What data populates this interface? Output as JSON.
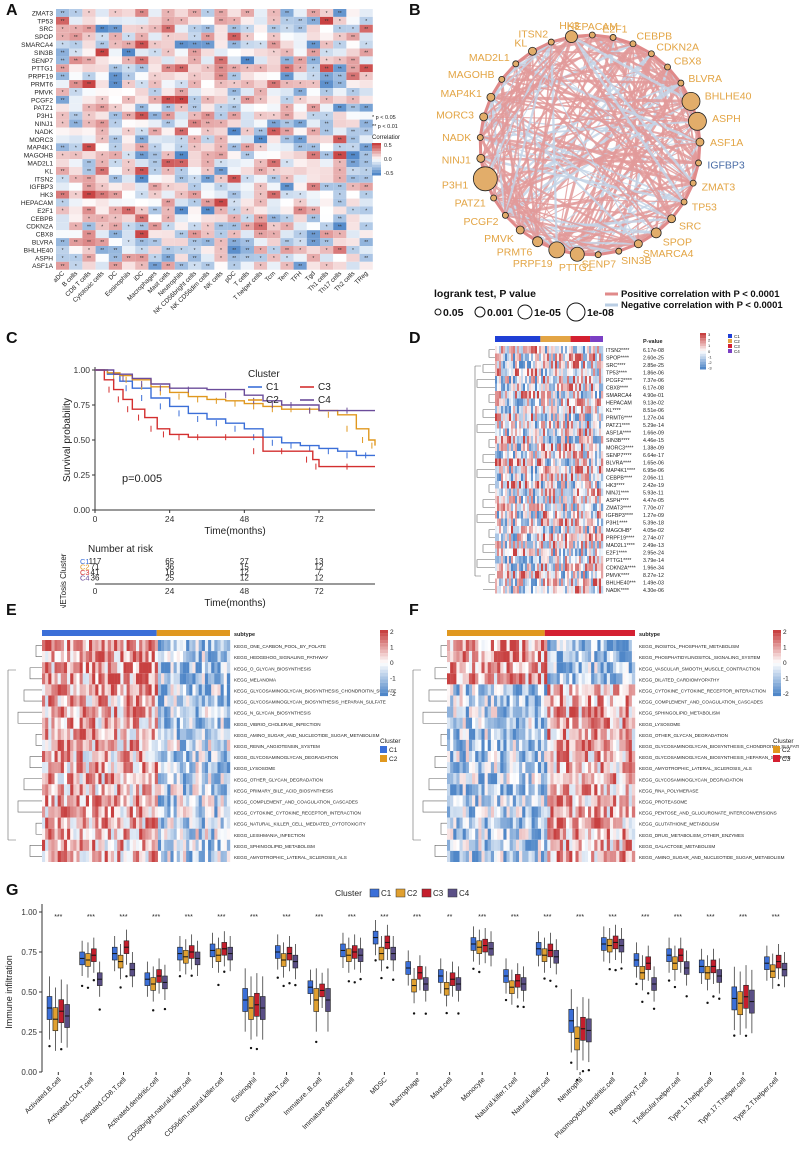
{
  "panels": {
    "A": "A",
    "B": "B",
    "C": "C",
    "D": "D",
    "E": "E",
    "F": "F",
    "G": "G"
  },
  "panelA": {
    "genes": [
      "ZMAT3",
      "TP53",
      "SRC",
      "SPOP",
      "SMARCA4",
      "SIN3B",
      "SENP7",
      "PTTG1",
      "PRPF19",
      "PRMT6",
      "PMVK",
      "PCGF2",
      "PATZ1",
      "P3H1",
      "NINJ1",
      "NADK",
      "MORC3",
      "MAP4K1",
      "MAGOHB",
      "MAD2L1",
      "KL",
      "ITSN2",
      "IGFBP3",
      "HK3",
      "HEPACAM",
      "E2F1",
      "CEBPB",
      "CDKN2A",
      "CBX8",
      "BLVRA",
      "BHLHE40",
      "ASPH",
      "ASF1A"
    ],
    "cells": [
      "aDC",
      "B cells",
      "CD8 T cells",
      "Cytotoxic cells",
      "DC",
      "Eosinophils",
      "iDC",
      "Macrophages",
      "Mast cells",
      "Neutrophils",
      "NK CD56bright cells",
      "NK CD56dim cells",
      "NK cells",
      "pDC",
      "T cells",
      "T helper cells",
      "Tcm",
      "Tem",
      "TFH",
      "Tgd",
      "Th1 cells",
      "Th17 cells",
      "Th2 cells",
      "TReg"
    ],
    "legend_title": "Correlation",
    "legend_ticks": [
      "0.5",
      "0.0",
      "-0.5"
    ],
    "sig_notes": [
      "* p < 0.05",
      "** p < 0.01"
    ]
  },
  "panelB": {
    "nodes": [
      {
        "name": "HEPACAM",
        "color": "#e3a545"
      },
      {
        "name": "E2F1",
        "color": "#e3a545"
      },
      {
        "name": "CEBPB",
        "color": "#e3a545"
      },
      {
        "name": "CDKN2A",
        "color": "#e3a545"
      },
      {
        "name": "CBX8",
        "color": "#e3a545"
      },
      {
        "name": "BLVRA",
        "color": "#e3a545"
      },
      {
        "name": "BHLHE40",
        "color": "#e3a545"
      },
      {
        "name": "ASPH",
        "color": "#e3a545"
      },
      {
        "name": "ASF1A",
        "color": "#e3a545"
      },
      {
        "name": "IGFBP3",
        "color": "#4a6da7"
      },
      {
        "name": "ZMAT3",
        "color": "#e3a545"
      },
      {
        "name": "TP53",
        "color": "#e3a545"
      },
      {
        "name": "SRC",
        "color": "#e3a545"
      },
      {
        "name": "SPOP",
        "color": "#e3a545"
      },
      {
        "name": "SMARCA4",
        "color": "#e3a545"
      },
      {
        "name": "SIN3B",
        "color": "#e3a545"
      },
      {
        "name": "SENP7",
        "color": "#e3a545"
      },
      {
        "name": "PTTG1",
        "color": "#e3a545"
      },
      {
        "name": "PRPF19",
        "color": "#e3a545"
      },
      {
        "name": "PRMT6",
        "color": "#e3a545"
      },
      {
        "name": "PMVK",
        "color": "#e3a545"
      },
      {
        "name": "PCGF2",
        "color": "#e3a545"
      },
      {
        "name": "PATZ1",
        "color": "#e3a545"
      },
      {
        "name": "P3H1",
        "color": "#e3a545"
      },
      {
        "name": "NINJ1",
        "color": "#e3a545"
      },
      {
        "name": "NADK",
        "color": "#e3a545"
      },
      {
        "name": "MORC3",
        "color": "#e3a545"
      },
      {
        "name": "MAP4K1",
        "color": "#e3a545"
      },
      {
        "name": "MAGOHB",
        "color": "#e3a545"
      },
      {
        "name": "MAD2L1",
        "color": "#e3a545"
      },
      {
        "name": "KL",
        "color": "#e3a545"
      },
      {
        "name": "ITSN2",
        "color": "#e3a545"
      },
      {
        "name": "HK3",
        "color": "#e3a545"
      }
    ],
    "legend_title": "logrank test, P value",
    "size_legend": [
      "0.05",
      "0.001",
      "1e-05",
      "1e-08"
    ],
    "edge_legend": [
      {
        "label": "Positive correlation with P < 0.0001",
        "color": "#e08a8a"
      },
      {
        "label": "Negative correlation with P < 0.0001",
        "color": "#b9cde3"
      }
    ]
  },
  "panelC": {
    "chart_data": {
      "type": "line",
      "title": "",
      "xlabel": "Time(months)",
      "ylabel": "Survival probability",
      "xlim": [
        0,
        90
      ],
      "ylim": [
        0,
        1
      ],
      "xticks": [
        "0",
        "24",
        "48",
        "72"
      ],
      "yticks": [
        "0.00",
        "0.25",
        "0.50",
        "0.75",
        "1.00"
      ],
      "pvalue": "p=0.005",
      "legend_title": "Cluster",
      "series": [
        {
          "name": "C1",
          "color": "#3b6fd8",
          "x": [
            0,
            4,
            8,
            12,
            18,
            24,
            30,
            36,
            42,
            48,
            54,
            60,
            66,
            72,
            78,
            84,
            90
          ],
          "y": [
            1,
            0.97,
            0.92,
            0.87,
            0.8,
            0.74,
            0.69,
            0.65,
            0.62,
            0.58,
            0.52,
            0.48,
            0.46,
            0.44,
            0.42,
            0.39,
            0.39
          ]
        },
        {
          "name": "C2",
          "color": "#e0981f",
          "x": [
            0,
            4,
            8,
            12,
            18,
            24,
            30,
            36,
            42,
            48,
            54,
            60,
            66,
            72,
            78,
            84,
            88,
            90
          ],
          "y": [
            1,
            0.98,
            0.96,
            0.93,
            0.88,
            0.84,
            0.81,
            0.79,
            0.78,
            0.76,
            0.74,
            0.72,
            0.72,
            0.71,
            0.68,
            0.58,
            0.5,
            0.46
          ]
        },
        {
          "name": "C3",
          "color": "#d32f2f",
          "x": [
            0,
            3,
            6,
            9,
            12,
            16,
            20,
            24,
            30,
            36,
            48,
            54,
            66,
            70,
            72,
            90
          ],
          "y": [
            1,
            0.93,
            0.86,
            0.79,
            0.72,
            0.66,
            0.58,
            0.54,
            0.52,
            0.52,
            0.52,
            0.42,
            0.42,
            0.36,
            0.31,
            0.31
          ]
        },
        {
          "name": "C4",
          "color": "#6b4c9a",
          "x": [
            0,
            6,
            12,
            18,
            24,
            36,
            48,
            54,
            60,
            66,
            72,
            90
          ],
          "y": [
            1,
            0.97,
            0.94,
            0.9,
            0.87,
            0.86,
            0.82,
            0.78,
            0.75,
            0.75,
            0.71,
            0.71
          ]
        }
      ],
      "risk_table": {
        "title": "Number at risk",
        "ylabel": "NETosis Cluster",
        "rows": [
          {
            "name": "C1",
            "values": [
              "117",
              "65",
              "27",
              "13"
            ]
          },
          {
            "name": "C2",
            "values": [
              "71",
              "36",
              "15",
              "12"
            ]
          },
          {
            "name": "C3",
            "values": [
              "41",
              "16",
              "12",
              "7"
            ]
          },
          {
            "name": "C4",
            "values": [
              "36",
              "25",
              "12",
              "12"
            ]
          }
        ]
      }
    }
  },
  "panelD": {
    "genes": [
      {
        "g": "ITSN2****",
        "p": "6.17e-08"
      },
      {
        "g": "SPOP****",
        "p": "2.60e-25"
      },
      {
        "g": "SRC****",
        "p": "2.85e-25"
      },
      {
        "g": "TP53****",
        "p": "1.86e-06"
      },
      {
        "g": "PCGF2****",
        "p": "7.37e-06"
      },
      {
        "g": "CBX8****",
        "p": "6.17e-08"
      },
      {
        "g": "SMARCA4",
        "p": "4.90e-01"
      },
      {
        "g": "HEPACAM",
        "p": "9.13e-02"
      },
      {
        "g": "KL****",
        "p": "8.51e-06"
      },
      {
        "g": "PRMT6****",
        "p": "1.27e-04"
      },
      {
        "g": "PATZ1****",
        "p": "5.29e-14"
      },
      {
        "g": "ASF1A****",
        "p": "1.66e-09"
      },
      {
        "g": "SIN3B****",
        "p": "4.46e-15"
      },
      {
        "g": "MORC3****",
        "p": "1.38e-09"
      },
      {
        "g": "SENP7****",
        "p": "6.64e-17"
      },
      {
        "g": "BLVRA****",
        "p": "1.65e-06"
      },
      {
        "g": "MAP4K1****",
        "p": "6.95e-06"
      },
      {
        "g": "CEBPB****",
        "p": "2.06e-11"
      },
      {
        "g": "HK3****",
        "p": "2.42e-19"
      },
      {
        "g": "NINJ1****",
        "p": "5.93e-11"
      },
      {
        "g": "ASPH****",
        "p": "4.47e-05"
      },
      {
        "g": "ZMAT3****",
        "p": "7.70e-07"
      },
      {
        "g": "IGFBP3****",
        "p": "1.27e-09"
      },
      {
        "g": "P3H1****",
        "p": "5.39e-18"
      },
      {
        "g": "MAGOHB*",
        "p": "4.05e-02"
      },
      {
        "g": "PRPF19****",
        "p": "2.74e-07"
      },
      {
        "g": "MAD2L1****",
        "p": "2.49e-13"
      },
      {
        "g": "E2F1****",
        "p": "2.95e-24"
      },
      {
        "g": "PTTG1****",
        "p": "3.79e-14"
      },
      {
        "g": "CDKN2A****",
        "p": "1.96e-34"
      },
      {
        "g": "PMVK****",
        "p": "8.27e-12"
      },
      {
        "g": "BHLHE40***",
        "p": "1.49e-03"
      },
      {
        "g": "NADK****",
        "p": "4.30e-06"
      }
    ],
    "pvalue_header": "P-value",
    "legend_ticks": [
      "3",
      "2",
      "1",
      "0",
      "-1",
      "-2",
      "-3"
    ],
    "clusters": [
      {
        "name": "C1",
        "color": "#1f3fd6"
      },
      {
        "name": "C2",
        "color": "#e3a545"
      },
      {
        "name": "C3",
        "color": "#d42031"
      },
      {
        "name": "C4",
        "color": "#7b3fc4"
      }
    ]
  },
  "panelE": {
    "header": "subtype",
    "pathways": [
      "KEGG_ONE_CARBON_POOL_BY_FOLATE",
      "KEGG_HEDGEHOG_SIGNALING_PATHWAY",
      "KEGG_O_GLYCAN_BIOSYNTHESIS",
      "KEGG_MELANOMA",
      "KEGG_GLYCOSAMINOGLYCAN_BIOSYNTHESIS_CHONDROITIN_SULFATE",
      "KEGG_GLYCOSAMINOGLYCAN_BIOSYNTHESIS_HEPARAN_SULFATE",
      "KEGG_N_GLYCAN_BIOSYNTHESIS",
      "KEGG_VIBRIO_CHOLERAE_INFECTION",
      "KEGG_AMINO_SUGAR_AND_NUCLEOTIDE_SUGAR_METABOLISM",
      "KEGG_RENIN_ANGIOTENSIN_SYSTEM",
      "KEGG_GLYCOSAMINOGLYCAN_DEGRADATION",
      "KEGG_LYSOSOME",
      "KEGG_OTHER_GLYCAN_DEGRADATION",
      "KEGG_PRIMARY_BILE_ACID_BIOSYNTHESIS",
      "KEGG_COMPLEMENT_AND_COAGULATION_CASCADES",
      "KEGG_CYTOKINE_CYTOKINE_RECEPTOR_INTERACTION",
      "KEGG_NATURAL_KILLER_CELL_MEDIATED_CYTOTOXICITY",
      "KEGG_LEISHMANIA_INFECTION",
      "KEGG_SPHINGOLIPID_METABOLISM",
      "KEGG_AMYOTROPHIC_LATERAL_SCLEROSIS_ALS"
    ],
    "legend_ticks": [
      "2",
      "1",
      "0",
      "-1",
      "-2"
    ],
    "cluster_title": "Cluster",
    "clusters": [
      {
        "name": "C1",
        "color": "#3b6fd8"
      },
      {
        "name": "C2",
        "color": "#e0981f"
      }
    ]
  },
  "panelF": {
    "header": "subtype",
    "pathways": [
      "KEGG_INOSITOL_PHOSPHATE_METABOLISM",
      "KEGG_PHOSPHATIDYLINOSITOL_SIGNALING_SYSTEM",
      "KEGG_VASCULAR_SMOOTH_MUSCLE_CONTRACTION",
      "KEGG_DILATED_CARDIOMYOPATHY",
      "KEGG_CYTOKINE_CYTOKINE_RECEPTOR_INTERACTION",
      "KEGG_COMPLEMENT_AND_COAGULATION_CASCADES",
      "KEGG_SPHINGOLIPID_METABOLISM",
      "KEGG_LYSOSOME",
      "KEGG_OTHER_GLYCAN_DEGRADATION",
      "KEGG_GLYCOSAMINOGLYCAN_BIOSYNTHESIS_CHONDROITIN_SULFATE",
      "KEGG_GLYCOSAMINOGLYCAN_BIOSYNTHESIS_HEPARAN_SULFATE",
      "KEGG_AMYOTROPHIC_LATERAL_SCLEROSIS_ALS",
      "KEGG_GLYCOSAMINOGLYCAN_DEGRADATION",
      "KEGG_RNA_POLYMERASE",
      "KEGG_PROTEASOME",
      "KEGG_PENTOSE_AND_GLUCURONATE_INTERCONVERSIONS",
      "KEGG_GLUTATHIONE_METABOLISM",
      "KEGG_DRUG_METABOLISM_OTHER_ENZYMES",
      "KEGG_GALACTOSE_METABOLISM",
      "KEGG_AMINO_SUGAR_AND_NUCLEOTIDE_SUGAR_METABOLISM"
    ],
    "legend_ticks": [
      "2",
      "1",
      "0",
      "-1",
      "-2"
    ],
    "cluster_title": "Cluster",
    "clusters": [
      {
        "name": "C2",
        "color": "#e0981f"
      },
      {
        "name": "C3",
        "color": "#d42031"
      }
    ]
  },
  "panelG": {
    "chart_data": {
      "type": "box",
      "ylabel": "Immune infiltration",
      "ylim": [
        0,
        1
      ],
      "yticks": [
        "0.00",
        "0.25",
        "0.50",
        "0.75",
        "1.00"
      ],
      "legend_title": "Cluster",
      "series": [
        {
          "name": "C1",
          "color": "#3b6fd8"
        },
        {
          "name": "C2",
          "color": "#e0a030"
        },
        {
          "name": "C3",
          "color": "#c41e2c"
        },
        {
          "name": "C4",
          "color": "#5a4f86"
        }
      ],
      "categories": [
        "Activated.B.cell",
        "Activated.CD4.T.cell",
        "Activated.CD8.T.cell",
        "Activated.dendritic.cell",
        "CD56bright.natural.killer.cell",
        "CD56dim.natural.killer.cell",
        "Eosinophil",
        "Gamma.delta.T.cell",
        "Immature..B.cell",
        "Immature.dendritic.cell",
        "MDSC",
        "Macrophage",
        "Mast.cell",
        "Monocyte",
        "Natural.killer.T.cell",
        "Natural.killer.cell",
        "Neutrophil",
        "Plasmacytoid.dendritic.cell",
        "Regulatory.T.cell",
        "T.follicular.helper.cell",
        "Type.1.T.helper.cell",
        "Type.17.T.helper.cell",
        "Type.2.T.helper.cell"
      ],
      "significance": [
        "***",
        "***",
        "***",
        "***",
        "***",
        "***",
        "***",
        "***",
        "***",
        "***",
        "***",
        "***",
        "**",
        "***",
        "***",
        "***",
        "***",
        "***",
        "***",
        "***",
        "***",
        "***",
        "***"
      ],
      "medians": [
        [
          0.4,
          0.33,
          0.38,
          0.35
        ],
        [
          0.71,
          0.7,
          0.73,
          0.58
        ],
        [
          0.74,
          0.69,
          0.78,
          0.64
        ],
        [
          0.58,
          0.55,
          0.6,
          0.56
        ],
        [
          0.74,
          0.72,
          0.75,
          0.71
        ],
        [
          0.76,
          0.73,
          0.77,
          0.74
        ],
        [
          0.45,
          0.4,
          0.42,
          0.4
        ],
        [
          0.75,
          0.7,
          0.74,
          0.69
        ],
        [
          0.53,
          0.45,
          0.51,
          0.45
        ],
        [
          0.76,
          0.73,
          0.75,
          0.73
        ],
        [
          0.84,
          0.74,
          0.81,
          0.74
        ],
        [
          0.65,
          0.54,
          0.62,
          0.55
        ],
        [
          0.6,
          0.52,
          0.58,
          0.55
        ],
        [
          0.8,
          0.78,
          0.79,
          0.77
        ],
        [
          0.6,
          0.53,
          0.57,
          0.55
        ],
        [
          0.77,
          0.73,
          0.76,
          0.72
        ],
        [
          0.32,
          0.21,
          0.27,
          0.26
        ],
        [
          0.8,
          0.79,
          0.81,
          0.79
        ],
        [
          0.7,
          0.62,
          0.68,
          0.55
        ],
        [
          0.73,
          0.68,
          0.73,
          0.65
        ],
        [
          0.66,
          0.62,
          0.66,
          0.6
        ],
        [
          0.46,
          0.43,
          0.47,
          0.44
        ],
        [
          0.68,
          0.63,
          0.69,
          0.64
        ]
      ]
    }
  }
}
